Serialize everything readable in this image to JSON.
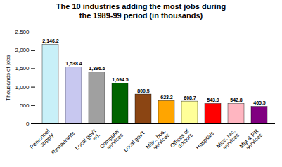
{
  "chart_data": {
    "type": "bar",
    "title": "The 10 industries adding the most jobs during\nthe 1989-99 period (in thousands)",
    "ylabel": "Thousands of jobs",
    "categories": [
      "Personnel\nsupply",
      "Restaurants",
      "Local gov't\ned.",
      "Computer\nservices",
      "Local gov't",
      "Misc. bus.\nservices",
      "Offices of\ndoctors",
      "Hospitals",
      "Misc. rec.\nservices",
      "Mgt & PR\nservices"
    ],
    "values": [
      2146.2,
      1538.4,
      1396.6,
      1094.5,
      800.5,
      623.2,
      608.7,
      543.9,
      542.8,
      465.5
    ],
    "value_labels": [
      "2,146.2",
      "1,538.4",
      "1,396.6",
      "1,094.5",
      "800.5",
      "623.2",
      "608.7",
      "543.9",
      "542.8",
      "465.5"
    ],
    "colors": [
      "#c8f0f8",
      "#c8c8f0",
      "#a0a0a0",
      "#006400",
      "#8b4513",
      "#ffa500",
      "#ffff99",
      "#ff0000",
      "#ffb6c1",
      "#800080"
    ],
    "ylim": [
      0,
      2500
    ],
    "yticks": [
      0,
      500,
      {
        "value": 1000,
        "label": "1,000"
      },
      {
        "value": 1500,
        "label": "1,500"
      },
      {
        "value": 2000,
        "label": "2,000"
      },
      {
        "value": 2500,
        "label": "2,500"
      }
    ],
    "data_labels": true,
    "grid": false
  }
}
